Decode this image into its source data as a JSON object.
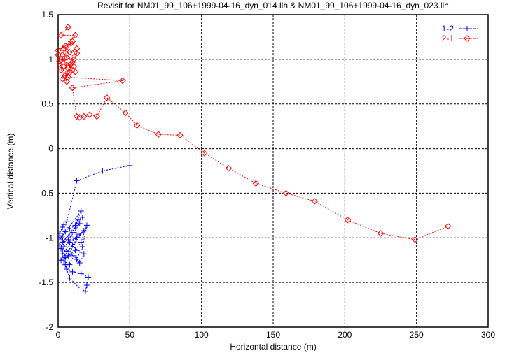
{
  "chart_data": {
    "type": "line",
    "title": "Revisit for NM01_99_106+1999-04-16_dyn_014.llh & NM01_99_106+1999-04-16_dyn_023.llh",
    "xlabel": "Horizontal distance (m)",
    "ylabel": "Vertical distance (m)",
    "xlim": [
      0,
      300
    ],
    "ylim": [
      -2,
      1.5
    ],
    "xticks": [
      0,
      50,
      100,
      150,
      200,
      250,
      300
    ],
    "yticks": [
      -2,
      -1.5,
      -1,
      -0.5,
      0,
      0.5,
      1,
      1.5
    ],
    "xtick_labels": [
      "0",
      "50",
      "100",
      "150",
      "200",
      "250",
      "300"
    ],
    "ytick_labels": [
      "-2",
      "-1.5",
      "-1",
      "-0.5",
      "0",
      "0.5",
      "1",
      "1.5"
    ],
    "grid": true,
    "legend_position": "top-right",
    "series": [
      {
        "name": "1-2",
        "color": "#0000ff",
        "marker": "plus",
        "x": [
          50,
          31,
          13,
          6,
          3,
          1,
          4,
          8,
          12,
          16,
          2,
          5,
          9,
          14,
          17,
          3,
          7,
          11,
          15,
          1,
          4,
          8,
          13,
          18,
          2,
          6,
          10,
          14,
          3,
          7,
          12,
          16,
          19,
          2,
          5,
          9,
          13,
          17,
          20,
          4,
          8,
          11,
          15,
          18,
          1,
          6,
          10,
          16,
          21,
          20,
          19,
          14,
          8,
          5,
          3
        ],
        "y": [
          -0.19,
          -0.25,
          -0.36,
          -0.82,
          -0.88,
          -0.95,
          -0.85,
          -0.9,
          -0.86,
          -0.7,
          -1.0,
          -0.93,
          -0.98,
          -0.8,
          -0.77,
          -1.05,
          -1.02,
          -0.94,
          -0.84,
          -1.08,
          -1.1,
          -1.05,
          -1.0,
          -0.92,
          -1.12,
          -1.15,
          -1.08,
          -0.96,
          -1.18,
          -1.2,
          -1.14,
          -1.05,
          -0.9,
          -1.25,
          -1.22,
          -1.18,
          -1.24,
          -1.1,
          -0.86,
          -1.26,
          -1.3,
          -1.2,
          -1.28,
          -1.18,
          -1.0,
          -1.35,
          -1.38,
          -1.4,
          -1.44,
          -1.53,
          -1.6,
          -1.55,
          -1.45,
          -1.3,
          -0.98
        ]
      },
      {
        "name": "2-1",
        "color": "#ff0000",
        "marker": "diamond",
        "x": [
          45,
          10,
          13,
          15,
          18,
          22,
          27,
          34,
          47,
          55,
          70,
          85,
          102,
          119,
          138,
          159,
          179,
          202,
          225,
          249,
          272
        ],
        "y": [
          0.76,
          0.68,
          0.36,
          0.35,
          0.36,
          0.38,
          0.36,
          0.57,
          0.4,
          0.26,
          0.16,
          0.15,
          -0.05,
          -0.22,
          -0.39,
          -0.5,
          -0.59,
          -0.8,
          -0.95,
          -1.02,
          -0.87
        ],
        "cluster_x": [
          7,
          2,
          12,
          0,
          5,
          10,
          3,
          8,
          13,
          1,
          6,
          11,
          4,
          9,
          2,
          7,
          12,
          0,
          5,
          10,
          3,
          8,
          13,
          1,
          6,
          4,
          9,
          2,
          11,
          7
        ],
        "cluster_y": [
          1.36,
          1.27,
          1.27,
          1.1,
          1.15,
          1.2,
          1.05,
          1.08,
          1.12,
          0.98,
          1.02,
          1.0,
          0.92,
          0.95,
          0.88,
          0.9,
          0.86,
          1.05,
          0.82,
          0.97,
          0.78,
          0.85,
          1.07,
          0.95,
          0.75,
          1.12,
          1.18,
          1.0,
          0.92,
          0.8
        ]
      }
    ]
  }
}
